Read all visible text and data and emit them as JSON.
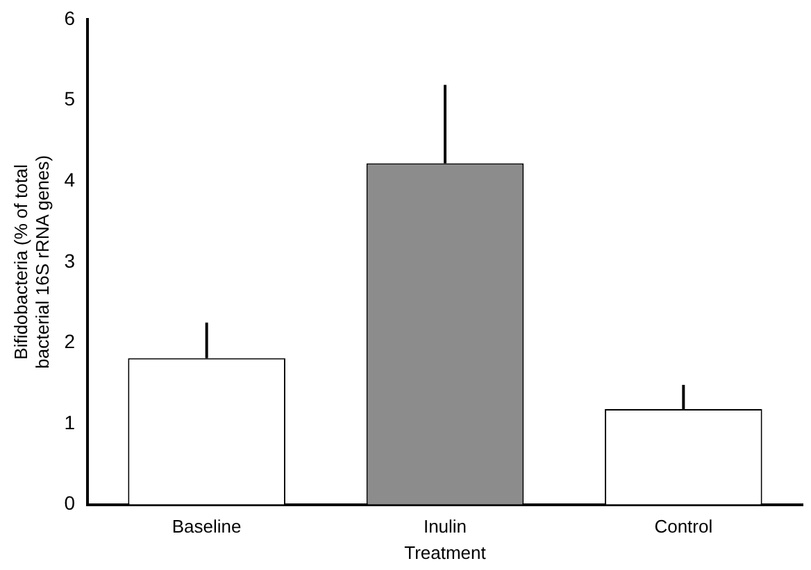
{
  "chart_data": {
    "type": "bar",
    "xlabel": "Treatment",
    "ylabel": "Bifidobacteria (% of total bacterial 16S rRNA genes)",
    "categories": [
      "Baseline",
      "Inulin",
      "Control"
    ],
    "values": [
      1.81,
      4.22,
      1.18
    ],
    "colors": [
      "#ffffff",
      "#8c8c8c",
      "#ffffff"
    ],
    "errors": [
      [
        1.81,
        2.25
      ],
      [
        4.22,
        5.19
      ],
      [
        1.18,
        1.48
      ]
    ],
    "ylim": [
      0,
      6
    ],
    "yticks": [
      0,
      1,
      2,
      3,
      4,
      5,
      6
    ],
    "grid": false,
    "legend": false
  }
}
